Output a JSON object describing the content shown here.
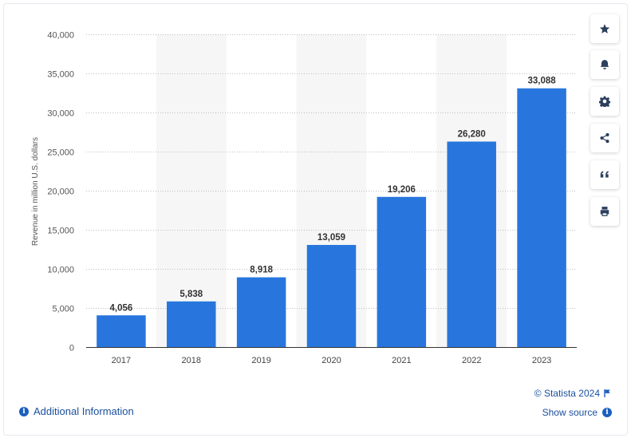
{
  "chart_data": {
    "type": "bar",
    "categories": [
      "2017",
      "2018",
      "2019",
      "2020",
      "2021",
      "2022",
      "2023"
    ],
    "values": [
      4056,
      5838,
      8918,
      13059,
      19206,
      26280,
      33088
    ],
    "value_labels": [
      "4,056",
      "5,838",
      "8,918",
      "13,059",
      "19,206",
      "26,280",
      "33,088"
    ],
    "ylabel": "Revenue in million U.S. dollars",
    "xlabel": "",
    "ylim": [
      0,
      40000
    ],
    "yticks": [
      0,
      5000,
      10000,
      15000,
      20000,
      25000,
      30000,
      35000,
      40000
    ],
    "ytick_labels": [
      "0",
      "5,000",
      "10,000",
      "15,000",
      "20,000",
      "25,000",
      "30,000",
      "35,000",
      "40,000"
    ],
    "grid": "horizontal dotted",
    "bar_color": "#2876dd",
    "alt_band_color": "#f6f6f6"
  },
  "toolbar": {
    "buttons": [
      {
        "name": "favorite-button",
        "icon": "star-icon"
      },
      {
        "name": "notification-button",
        "icon": "bell-icon"
      },
      {
        "name": "settings-button",
        "icon": "gear-icon"
      },
      {
        "name": "share-button",
        "icon": "share-icon"
      },
      {
        "name": "cite-button",
        "icon": "quote-icon"
      },
      {
        "name": "print-button",
        "icon": "print-icon"
      }
    ]
  },
  "footer": {
    "additional_info": "Additional Information",
    "copyright": "© Statista 2024",
    "show_source": "Show source"
  }
}
